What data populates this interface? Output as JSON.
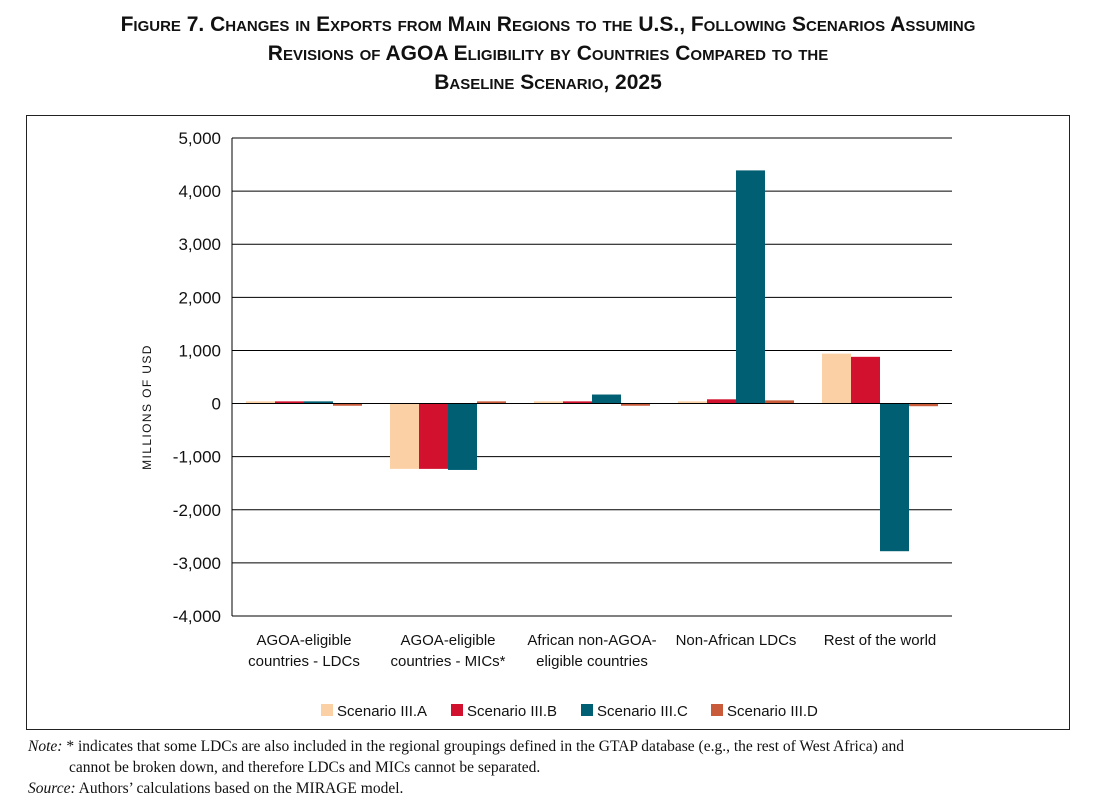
{
  "figure": {
    "title_lines": [
      "Figure 7. Changes in Exports from Main Regions to the U.S., Following Scenarios Assuming",
      "Revisions of AGOA Eligibility by Countries Compared to the",
      "Baseline Scenario, 2025"
    ],
    "note_label": "Note:",
    "note_line1": "* indicates that some LDCs are also included in the regional groupings defined in the GTAP database (e.g., the rest of West Africa) and",
    "note_line2": "cannot be broken down, and therefore LDCs and MICs cannot be separated.",
    "source_label": "Source:",
    "source_text": "Authors’ calculations based on the MIRAGE model."
  },
  "chart_data": {
    "type": "bar",
    "title": "Changes in Exports from Main Regions to the U.S., Following Scenarios Assuming Revisions of AGOA Eligibility by Countries Compared to the Baseline Scenario, 2025",
    "xlabel": "",
    "ylabel": "MILLIONS OF USD",
    "ylim": [
      -4000,
      5000
    ],
    "yticks": [
      5000,
      4000,
      3000,
      2000,
      1000,
      0,
      -1000,
      -2000,
      -3000,
      -4000
    ],
    "ytick_labels": [
      "5,000",
      "4,000",
      "3,000",
      "2,000",
      "1,000",
      "0",
      "-1,000",
      "-2,000",
      "-3,000",
      "-4,000"
    ],
    "grid": "horizontal",
    "legend_position": "bottom",
    "categories": [
      [
        "AGOA-eligible",
        "countries - LDCs"
      ],
      [
        "AGOA-eligible",
        "countries - MICs*"
      ],
      [
        "African non-AGOA-",
        "eligible countries"
      ],
      [
        "Non-African LDCs"
      ],
      [
        "Rest of the world"
      ]
    ],
    "series": [
      {
        "name": "Scenario III.A",
        "color": "#FBD0A4",
        "values": [
          15,
          -1230,
          40,
          20,
          940
        ]
      },
      {
        "name": "Scenario III.B",
        "color": "#D2112E",
        "values": [
          30,
          -1230,
          40,
          80,
          880
        ]
      },
      {
        "name": "Scenario III.C",
        "color": "#005F73",
        "values": [
          20,
          -1250,
          170,
          4390,
          -2780
        ]
      },
      {
        "name": "Scenario III.D",
        "color": "#C95B3A",
        "values": [
          -10,
          0,
          -10,
          60,
          -50
        ]
      }
    ]
  }
}
